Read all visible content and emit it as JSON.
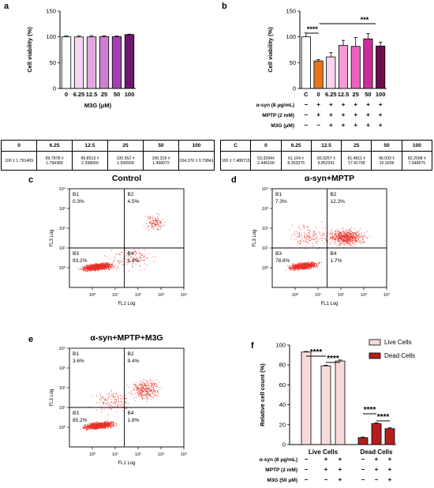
{
  "panel_letters": {
    "a": "a",
    "b": "b",
    "c": "c",
    "d": "d",
    "e": "e",
    "f": "f"
  },
  "colors": {
    "panel_a": [
      "#ffffff",
      "#f2d6f0",
      "#e4a8e0",
      "#cf7fd1",
      "#a33fb0",
      "#6e176d"
    ],
    "panel_b": [
      "#ffffff",
      "#e8751a",
      "#fbd3ee",
      "#f69ad7",
      "#ee5fc1",
      "#c72f99",
      "#6e0c4d"
    ],
    "live_bar": "#f9dada",
    "dead_bar": "#b51e1e",
    "dots": "#e8322b"
  },
  "sig_labels": {
    "b_short": "****",
    "b_long": "***",
    "f": [
      "****",
      "****",
      "****",
      "****"
    ]
  },
  "chart_data": [
    {
      "type": "bar",
      "panel": "a",
      "categories": [
        "0",
        "6.25",
        "12.5",
        "25",
        "50",
        "100"
      ],
      "values": [
        100,
        99.79,
        99.85,
        100.55,
        100.32,
        104.38
      ],
      "errors": [
        1.79,
        1.79,
        2.4,
        1.51,
        1.47,
        0.8
      ],
      "xlabel": "M3G (μM)",
      "ylabel": "Cell viability (%)",
      "ylim": [
        0,
        150
      ],
      "yticks": [
        "0",
        "50",
        "100",
        "150"
      ]
    },
    {
      "type": "bar",
      "panel": "b",
      "categories": [
        "C",
        "0",
        "6.25",
        "12.5",
        "25",
        "50",
        "100"
      ],
      "values": [
        100,
        53.33,
        61.1,
        83.33,
        81.48,
        96.03,
        82.2
      ],
      "errors": [
        7.49,
        2.45,
        8.2,
        9.85,
        17.42,
        10.32,
        7.65
      ],
      "ylabel": "Cell viability (%)",
      "ylim": [
        0,
        150
      ],
      "yticks": [
        "0",
        "50",
        "100",
        "150"
      ],
      "treatment_rows": [
        {
          "label": "α-syn (8 μg/mL)",
          "signs": [
            "−",
            "+",
            "+",
            "+",
            "+",
            "+",
            "+"
          ]
        },
        {
          "label": "MPTP (2 mM)",
          "signs": [
            "−",
            "+",
            "+",
            "+",
            "+",
            "+",
            "+"
          ]
        },
        {
          "label": "M3G (μM)",
          "signs": [
            "−",
            "−",
            "+",
            "+",
            "+",
            "+",
            "+"
          ]
        }
      ]
    },
    {
      "type": "table",
      "panel": "a-table",
      "headers": [
        "0",
        "6.25",
        "12.5",
        "25",
        "50",
        "100"
      ],
      "row": [
        "100 ± 1.791409",
        "99.7878 ± 1.794389",
        "99.8513 ± 2.398659",
        "100.552 ± 1.506558",
        "100.319 ± 1.468072",
        "104.376 ± 0.79841"
      ]
    },
    {
      "type": "table",
      "panel": "b-table",
      "headers": [
        "C",
        "0",
        "6.25",
        "12.5",
        "25",
        "50",
        "100"
      ],
      "row": [
        "100 ± 7.488715",
        "53.3294± 2.446109",
        "61.104 ± 8.203375",
        "83.3257 ± 9.852291",
        "81.4811 ± 17.41798",
        "96.033 ± 10.3206",
        "82.2008 ± 7.648575"
      ]
    },
    {
      "type": "scatter",
      "panel": "c",
      "title": "Control",
      "xlabel": "FL1 Log",
      "ylabel": "FL3 Log",
      "xlim": [
        0.1,
        10000
      ],
      "ylim": [
        0.1,
        10000
      ],
      "log": true,
      "xticks": [
        "10⁰",
        "10¹",
        "10²",
        "10³",
        "10⁴"
      ],
      "yticks": [
        "10⁰",
        "10¹",
        "10²",
        "10³",
        "10⁴"
      ],
      "quadrants": [
        {
          "label": "B1",
          "pct": "0.3%"
        },
        {
          "label": "B2",
          "pct": "4.5%"
        },
        {
          "label": "B3",
          "pct": "93.2%"
        },
        {
          "label": "B4",
          "pct": "1.9%"
        }
      ]
    },
    {
      "type": "scatter",
      "panel": "d",
      "title": "α-syn+MPTP",
      "xlabel": "FL1 Log",
      "ylabel": "FL3 Log",
      "xlim": [
        0.1,
        10000
      ],
      "ylim": [
        0.1,
        10000
      ],
      "log": true,
      "xticks": [
        "10⁰",
        "10¹",
        "10²",
        "10³",
        "10⁴"
      ],
      "yticks": [
        "10⁰",
        "10¹",
        "10²",
        "10³",
        "10⁴"
      ],
      "quadrants": [
        {
          "label": "B1",
          "pct": "7.3%"
        },
        {
          "label": "B2",
          "pct": "12.2%"
        },
        {
          "label": "B3",
          "pct": "78.8%"
        },
        {
          "label": "B4",
          "pct": "1.7%"
        }
      ]
    },
    {
      "type": "scatter",
      "panel": "e",
      "title": "α-syn+MPTP+M3G",
      "xlabel": "FL1 Log",
      "ylabel": "FL3 Log",
      "xlim": [
        0.1,
        10000
      ],
      "ylim": [
        0.1,
        10000
      ],
      "log": true,
      "xticks": [
        "10⁰",
        "10¹",
        "10²",
        "10³",
        "10⁴"
      ],
      "yticks": [
        "10⁰",
        "10¹",
        "10²",
        "10³",
        "10⁴"
      ],
      "quadrants": [
        {
          "label": "B1",
          "pct": "3.6%"
        },
        {
          "label": "B2",
          "pct": "9.4%"
        },
        {
          "label": "B3",
          "pct": "85.2%"
        },
        {
          "label": "B4",
          "pct": "1.8%"
        }
      ]
    },
    {
      "type": "bar",
      "panel": "f",
      "groups": [
        "Live Cells",
        "Dead Cells"
      ],
      "series": [
        {
          "name": "Live Cells",
          "values": [
            93,
            79,
            84
          ],
          "errors": [
            0.6,
            0.8,
            1.0
          ]
        },
        {
          "name": "Dead Cells",
          "values": [
            7,
            21,
            16
          ],
          "errors": [
            0.5,
            0.8,
            0.9
          ]
        }
      ],
      "ylabel": "Relative cell count (%)",
      "ylim": [
        0,
        100
      ],
      "yticks": [
        "0",
        "20",
        "40",
        "60",
        "80",
        "100"
      ],
      "legend": "top-right",
      "treatment_rows": [
        {
          "label": "α-syn (8 μg/mL)",
          "signs": [
            "−",
            "+",
            "+",
            "−",
            "+",
            "+"
          ]
        },
        {
          "label": "MPTP (2 mM)",
          "signs": [
            "−",
            "+",
            "+",
            "−",
            "+",
            "+"
          ]
        },
        {
          "label": "M3G (50 μM)",
          "signs": [
            "−",
            "−",
            "+",
            "−",
            "−",
            "+"
          ]
        }
      ]
    }
  ]
}
